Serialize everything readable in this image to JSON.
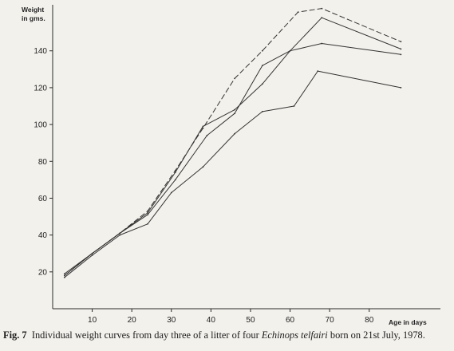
{
  "chart_data": {
    "type": "line",
    "ylabel_lines": [
      "Weight",
      "in gms."
    ],
    "xlabel": "Age in days",
    "xlim": [
      0,
      98
    ],
    "ylim": [
      0,
      165
    ],
    "x_ticks": [
      10,
      20,
      30,
      40,
      50,
      60,
      70,
      80
    ],
    "y_ticks": [
      20,
      40,
      60,
      80,
      100,
      120,
      140
    ],
    "line_color": "#333333",
    "series": [
      {
        "style": "dashed",
        "points": [
          [
            3,
            18
          ],
          [
            10,
            30
          ],
          [
            17,
            41
          ],
          [
            24,
            53
          ],
          [
            31,
            75
          ],
          [
            38,
            98
          ],
          [
            46,
            125
          ],
          [
            53,
            140
          ],
          [
            62,
            161
          ],
          [
            68,
            163
          ],
          [
            88,
            145
          ]
        ]
      },
      {
        "style": "solid",
        "points": [
          [
            3,
            18
          ],
          [
            10,
            30
          ],
          [
            17,
            41
          ],
          [
            24,
            52
          ],
          [
            31,
            74
          ],
          [
            38,
            99
          ],
          [
            46,
            108
          ],
          [
            53,
            122
          ],
          [
            60,
            140
          ],
          [
            68,
            158
          ],
          [
            88,
            141
          ]
        ]
      },
      {
        "style": "solid",
        "points": [
          [
            3,
            19
          ],
          [
            10,
            30
          ],
          [
            17,
            41
          ],
          [
            24,
            51
          ],
          [
            31,
            70
          ],
          [
            39,
            94
          ],
          [
            46,
            106
          ],
          [
            53,
            132
          ],
          [
            60,
            140
          ],
          [
            68,
            144
          ],
          [
            88,
            138
          ]
        ]
      },
      {
        "style": "solid",
        "points": [
          [
            3,
            17
          ],
          [
            10,
            29
          ],
          [
            17,
            40
          ],
          [
            24,
            46
          ],
          [
            30,
            63
          ],
          [
            38,
            77
          ],
          [
            46,
            95
          ],
          [
            53,
            107
          ],
          [
            61,
            110
          ],
          [
            67,
            129
          ],
          [
            88,
            120
          ]
        ]
      }
    ]
  },
  "caption": {
    "fig_label": "Fig. 7",
    "text_before": "Individual weight curves from day three of a litter of four",
    "species": "Echinops telfairi",
    "text_after": "born on 21st July, 1978."
  }
}
